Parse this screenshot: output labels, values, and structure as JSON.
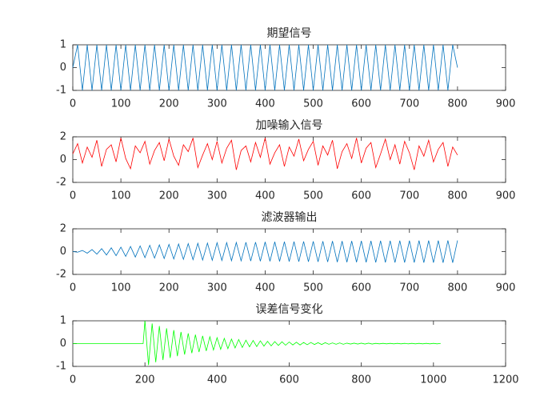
{
  "chart_data": [
    {
      "type": "line",
      "title": "期望信号",
      "color": "#0072BD",
      "x": [
        0,
        10,
        20,
        30,
        40,
        50,
        60,
        70,
        80,
        90,
        100,
        110,
        120,
        130,
        140,
        150,
        160,
        170,
        180,
        190,
        200,
        210,
        220,
        230,
        240,
        250,
        260,
        270,
        280,
        290,
        300,
        310,
        320,
        330,
        340,
        350,
        360,
        370,
        380,
        390,
        400,
        410,
        420,
        430,
        440,
        450,
        460,
        470,
        480,
        490,
        500,
        510,
        520,
        530,
        540,
        550,
        560,
        570,
        580,
        590,
        600,
        610,
        620,
        630,
        640,
        650,
        660,
        670,
        680,
        690,
        700,
        710,
        720,
        730,
        740,
        750,
        760,
        770,
        780,
        790,
        800
      ],
      "values": [
        0,
        1,
        -1,
        1,
        -1,
        1,
        -1,
        1,
        -1,
        1,
        -1,
        1,
        -1,
        1,
        -1,
        1,
        -1,
        1,
        -1,
        1,
        -1,
        1,
        -1,
        1,
        -1,
        1,
        -1,
        1,
        -1,
        1,
        -1,
        1,
        -1,
        1,
        -1,
        1,
        -1,
        1,
        -1,
        1,
        -1,
        1,
        -1,
        1,
        -1,
        1,
        -1,
        1,
        -1,
        1,
        -1,
        1,
        -1,
        1,
        -1,
        1,
        -1,
        1,
        -1,
        1,
        -1,
        1,
        -1,
        1,
        -1,
        1,
        -1,
        1,
        -1,
        1,
        -1,
        1,
        -1,
        1,
        -1,
        1,
        -1,
        1,
        -1,
        1,
        0
      ],
      "xlim": [
        0,
        900
      ],
      "xticks": [
        0,
        100,
        200,
        300,
        400,
        500,
        600,
        700,
        800,
        900
      ],
      "ylim": [
        -1,
        1
      ],
      "yticks": [
        -1,
        0,
        1
      ]
    },
    {
      "type": "line",
      "title": "加噪输入信号",
      "color": "#FF0000",
      "x": [
        0,
        10,
        20,
        30,
        40,
        50,
        60,
        70,
        80,
        90,
        100,
        110,
        120,
        130,
        140,
        150,
        160,
        170,
        180,
        190,
        200,
        210,
        220,
        230,
        240,
        250,
        260,
        270,
        280,
        290,
        300,
        310,
        320,
        330,
        340,
        350,
        360,
        370,
        380,
        390,
        400,
        410,
        420,
        430,
        440,
        450,
        460,
        470,
        480,
        490,
        500,
        510,
        520,
        530,
        540,
        550,
        560,
        570,
        580,
        590,
        600,
        610,
        620,
        630,
        640,
        650,
        660,
        670,
        680,
        690,
        700,
        710,
        720,
        730,
        740,
        750,
        760,
        770,
        780,
        790,
        800
      ],
      "values": [
        0.5,
        1.4,
        -0.3,
        1.1,
        0.2,
        1.7,
        -0.6,
        0.9,
        1.3,
        -0.2,
        1.9,
        0.1,
        -0.8,
        1.2,
        0.6,
        1.6,
        -0.4,
        0.8,
        1.5,
        -0.1,
        1.8,
        0.3,
        -0.5,
        1.3,
        0.7,
        1.9,
        -0.7,
        0.4,
        1.4,
        0,
        1.6,
        -0.3,
        1.0,
        1.7,
        -0.9,
        0.8,
        1.2,
        -0.2,
        1.5,
        0.2,
        1.9,
        -0.4,
        0.6,
        1.3,
        -0.6,
        1.1,
        0.3,
        1.8,
        -0.1,
        0.9,
        1.6,
        -0.5,
        1.2,
        0.4,
        1.7,
        -0.8,
        0.7,
        1.4,
        0.1,
        1.9,
        -0.3,
        1.0,
        1.5,
        -0.7,
        0.5,
        1.8,
        0,
        1.3,
        -0.4,
        1.6,
        0.6,
        -0.9,
        1.2,
        0.3,
        1.7,
        -0.2,
        0.9,
        1.5,
        -0.6,
        1.1,
        0.4
      ],
      "xlim": [
        0,
        900
      ],
      "xticks": [
        0,
        100,
        200,
        300,
        400,
        500,
        600,
        700,
        800,
        900
      ],
      "ylim": [
        -2,
        2
      ],
      "yticks": [
        -2,
        0,
        2
      ]
    },
    {
      "type": "line",
      "title": "滤波器输出",
      "color": "#0072BD",
      "x": [
        0,
        10,
        20,
        30,
        40,
        50,
        60,
        70,
        80,
        90,
        100,
        110,
        120,
        130,
        140,
        150,
        160,
        170,
        180,
        190,
        200,
        210,
        220,
        230,
        240,
        250,
        260,
        270,
        280,
        290,
        300,
        310,
        320,
        330,
        340,
        350,
        360,
        370,
        380,
        390,
        400,
        410,
        420,
        430,
        440,
        450,
        460,
        470,
        480,
        490,
        500,
        510,
        520,
        530,
        540,
        550,
        560,
        570,
        580,
        590,
        600,
        610,
        620,
        630,
        640,
        650,
        660,
        670,
        680,
        690,
        700,
        710,
        720,
        730,
        740,
        750,
        760,
        770,
        780,
        790,
        800
      ],
      "values": [
        0,
        -0.05,
        0.1,
        -0.14,
        0.18,
        -0.22,
        0.26,
        -0.3,
        0.33,
        -0.36,
        0.39,
        -0.42,
        0.45,
        -0.48,
        0.5,
        -0.53,
        0.55,
        -0.57,
        0.59,
        -0.61,
        0.63,
        -0.65,
        0.67,
        -0.68,
        0.7,
        -0.71,
        0.73,
        -0.74,
        0.75,
        -0.76,
        0.78,
        -0.78,
        0.79,
        -0.8,
        0.8,
        -0.81,
        0.82,
        -0.83,
        0.83,
        -0.84,
        0.85,
        -0.85,
        0.86,
        -0.86,
        0.87,
        -0.87,
        0.88,
        -0.88,
        0.89,
        -0.89,
        0.9,
        -0.9,
        0.91,
        -0.91,
        0.92,
        -0.92,
        0.92,
        -0.93,
        0.93,
        -0.93,
        0.94,
        -0.94,
        0.94,
        -0.95,
        0.95,
        -0.95,
        0.95,
        -0.96,
        0.96,
        -0.96,
        0.96,
        -0.96,
        0.97,
        -0.97,
        0.97,
        -0.97,
        0.97,
        -0.98,
        0.98,
        -0.98,
        0.98
      ],
      "xlim": [
        0,
        900
      ],
      "xticks": [
        0,
        100,
        200,
        300,
        400,
        500,
        600,
        700,
        800,
        900
      ],
      "ylim": [
        -2,
        2
      ],
      "yticks": [
        -2,
        0,
        2
      ]
    },
    {
      "type": "line",
      "title": "误差信号变化",
      "color": "#00FF00",
      "x": [
        0,
        195,
        200,
        210,
        220,
        230,
        240,
        250,
        260,
        270,
        280,
        290,
        300,
        310,
        320,
        330,
        340,
        350,
        360,
        370,
        380,
        390,
        400,
        410,
        420,
        430,
        440,
        450,
        460,
        470,
        480,
        490,
        500,
        510,
        520,
        530,
        540,
        550,
        560,
        570,
        580,
        590,
        600,
        610,
        620,
        630,
        640,
        650,
        660,
        670,
        680,
        690,
        700,
        710,
        720,
        730,
        740,
        750,
        760,
        770,
        780,
        790,
        800,
        810,
        820,
        830,
        840,
        850,
        860,
        870,
        880,
        890,
        900,
        910,
        920,
        930,
        940,
        950,
        960,
        970,
        980,
        990,
        1000,
        1010,
        1020
      ],
      "values": [
        0,
        0,
        1.0,
        -0.94,
        0.88,
        -0.82,
        0.77,
        -0.72,
        0.67,
        -0.63,
        0.59,
        -0.55,
        0.51,
        -0.48,
        0.45,
        -0.42,
        0.39,
        -0.37,
        0.34,
        -0.32,
        0.3,
        -0.28,
        0.26,
        -0.25,
        0.23,
        -0.22,
        0.2,
        -0.19,
        0.18,
        -0.17,
        0.15,
        -0.14,
        0.14,
        -0.13,
        0.12,
        -0.11,
        0.1,
        -0.1,
        0.09,
        -0.08,
        0.08,
        -0.07,
        0.07,
        -0.06,
        0.06,
        -0.06,
        0.05,
        -0.05,
        0.05,
        -0.04,
        0.04,
        -0.04,
        0.04,
        -0.03,
        0.03,
        -0.03,
        0.03,
        -0.03,
        0.02,
        -0.02,
        0.02,
        -0.02,
        0.02,
        -0.02,
        0.02,
        -0.02,
        0.01,
        -0.01,
        0.01,
        -0.01,
        0.01,
        -0.01,
        0.01,
        -0.01,
        0.01,
        -0.01,
        0.01,
        -0.01,
        0.01,
        -0.01,
        0.01,
        -0.01,
        0.01,
        -0.01,
        0.01
      ],
      "xlim": [
        0,
        1200
      ],
      "xticks": [
        0,
        200,
        400,
        600,
        800,
        1000,
        1200
      ],
      "ylim": [
        -1,
        1
      ],
      "yticks": [
        -1,
        0,
        1
      ]
    }
  ]
}
